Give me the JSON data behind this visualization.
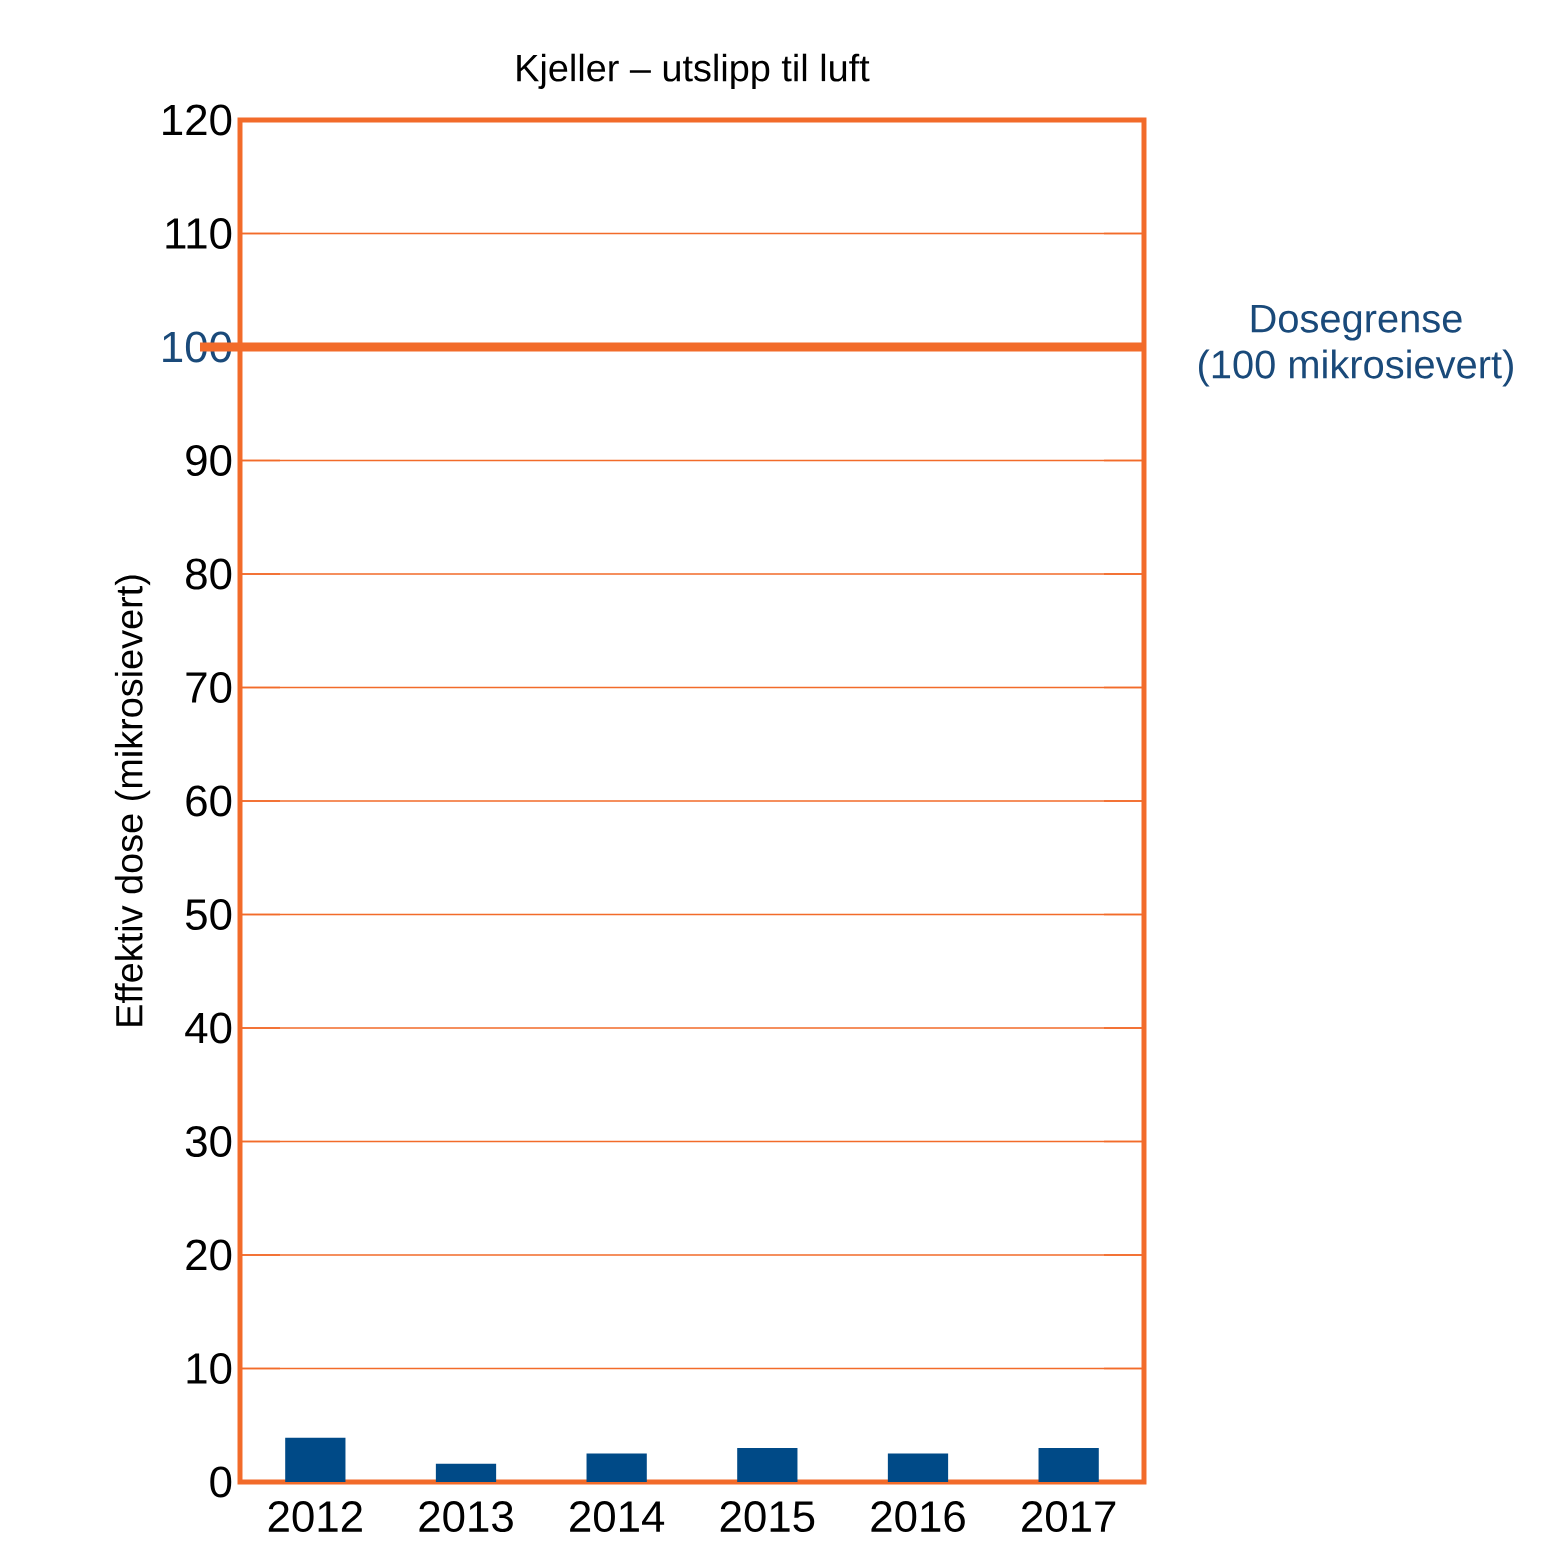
{
  "chart_data": {
    "type": "bar",
    "title": "Kjeller – utslipp til luft",
    "ylabel": "Effektiv dose (mikrosievert)",
    "categories": [
      "2012",
      "2013",
      "2014",
      "2015",
      "2016",
      "2017"
    ],
    "values": [
      3.9,
      1.6,
      2.5,
      3.0,
      2.5,
      3.0
    ],
    "color": "#004a87",
    "ylim": [
      0,
      120
    ],
    "yticks": [
      0,
      10,
      20,
      30,
      40,
      50,
      60,
      70,
      80,
      90,
      100,
      110,
      120
    ],
    "grid": "y",
    "ref_lines": [
      {
        "axis": "y",
        "value": 100,
        "label": "Dosegrense",
        "color": "#f26b2a"
      }
    ],
    "annotations": [
      "(100 mikrosievert)"
    ]
  }
}
